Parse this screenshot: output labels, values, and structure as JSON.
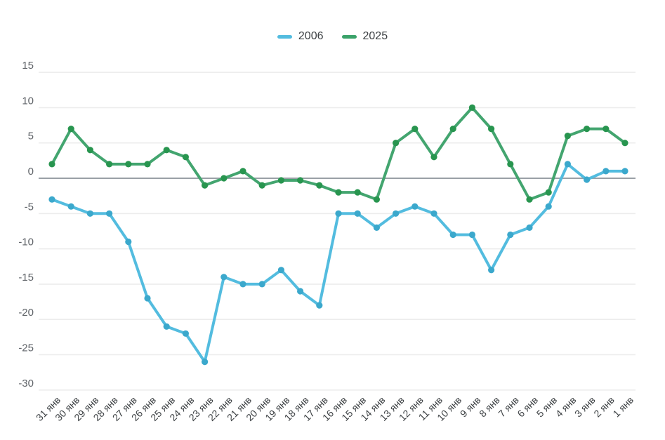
{
  "legend": {
    "items": [
      {
        "label": "2006",
        "color": "#53bcdf"
      },
      {
        "label": "2025",
        "color": "#3aa269"
      }
    ]
  },
  "chart_data": {
    "type": "line",
    "title": "",
    "xlabel": "",
    "ylabel": "",
    "categories": [
      "31 янв",
      "30 янв",
      "29 янв",
      "28 янв",
      "27 янв",
      "26 янв",
      "25 янв",
      "24 янв",
      "23 янв",
      "22 янв",
      "21 янв",
      "20 янв",
      "19 янв",
      "18 янв",
      "17 янв",
      "16 янв",
      "15 янв",
      "14 янв",
      "13 янв",
      "12 янв",
      "11 янв",
      "10 янв",
      "9 янв",
      "8 янв",
      "7 янв",
      "6 янв",
      "5 янв",
      "4 янв",
      "3 янв",
      "2 янв",
      "1 янв"
    ],
    "series": [
      {
        "name": "2006",
        "line_color": "#53bcdf",
        "point_color": "#3ba8cc",
        "values": [
          -3,
          -4,
          -5,
          -5,
          -9,
          -17,
          -21,
          -22,
          -26,
          -14,
          -15,
          -15,
          -13,
          -16,
          -18,
          -5,
          -5,
          -7,
          -5,
          -4,
          -5,
          -8,
          -8,
          -13,
          -8,
          -7,
          -4,
          2,
          -0.2,
          1,
          1
        ]
      },
      {
        "name": "2025",
        "line_color": "#43a56f",
        "point_color": "#28954f",
        "values": [
          2,
          7,
          4,
          2,
          2,
          2,
          4,
          3,
          -1,
          0,
          1,
          -1,
          -0.3,
          -0.3,
          -1,
          -2,
          -2,
          -3,
          5,
          7,
          3,
          7,
          10,
          7,
          2,
          -3,
          -2,
          6,
          7,
          7,
          5
        ]
      }
    ],
    "y_ticks": [
      15,
      10,
      5,
      0,
      -5,
      -10,
      -15,
      -20,
      -25,
      -30
    ],
    "ylim": [
      -30,
      15
    ],
    "grid": true,
    "zero_line": true,
    "legend_position": "top",
    "colors": {
      "gridline": "#ececec",
      "zero_line": "#9aa0a6",
      "y_tick_label": "#5f6368",
      "x_tick_label": "#3c4043"
    }
  }
}
